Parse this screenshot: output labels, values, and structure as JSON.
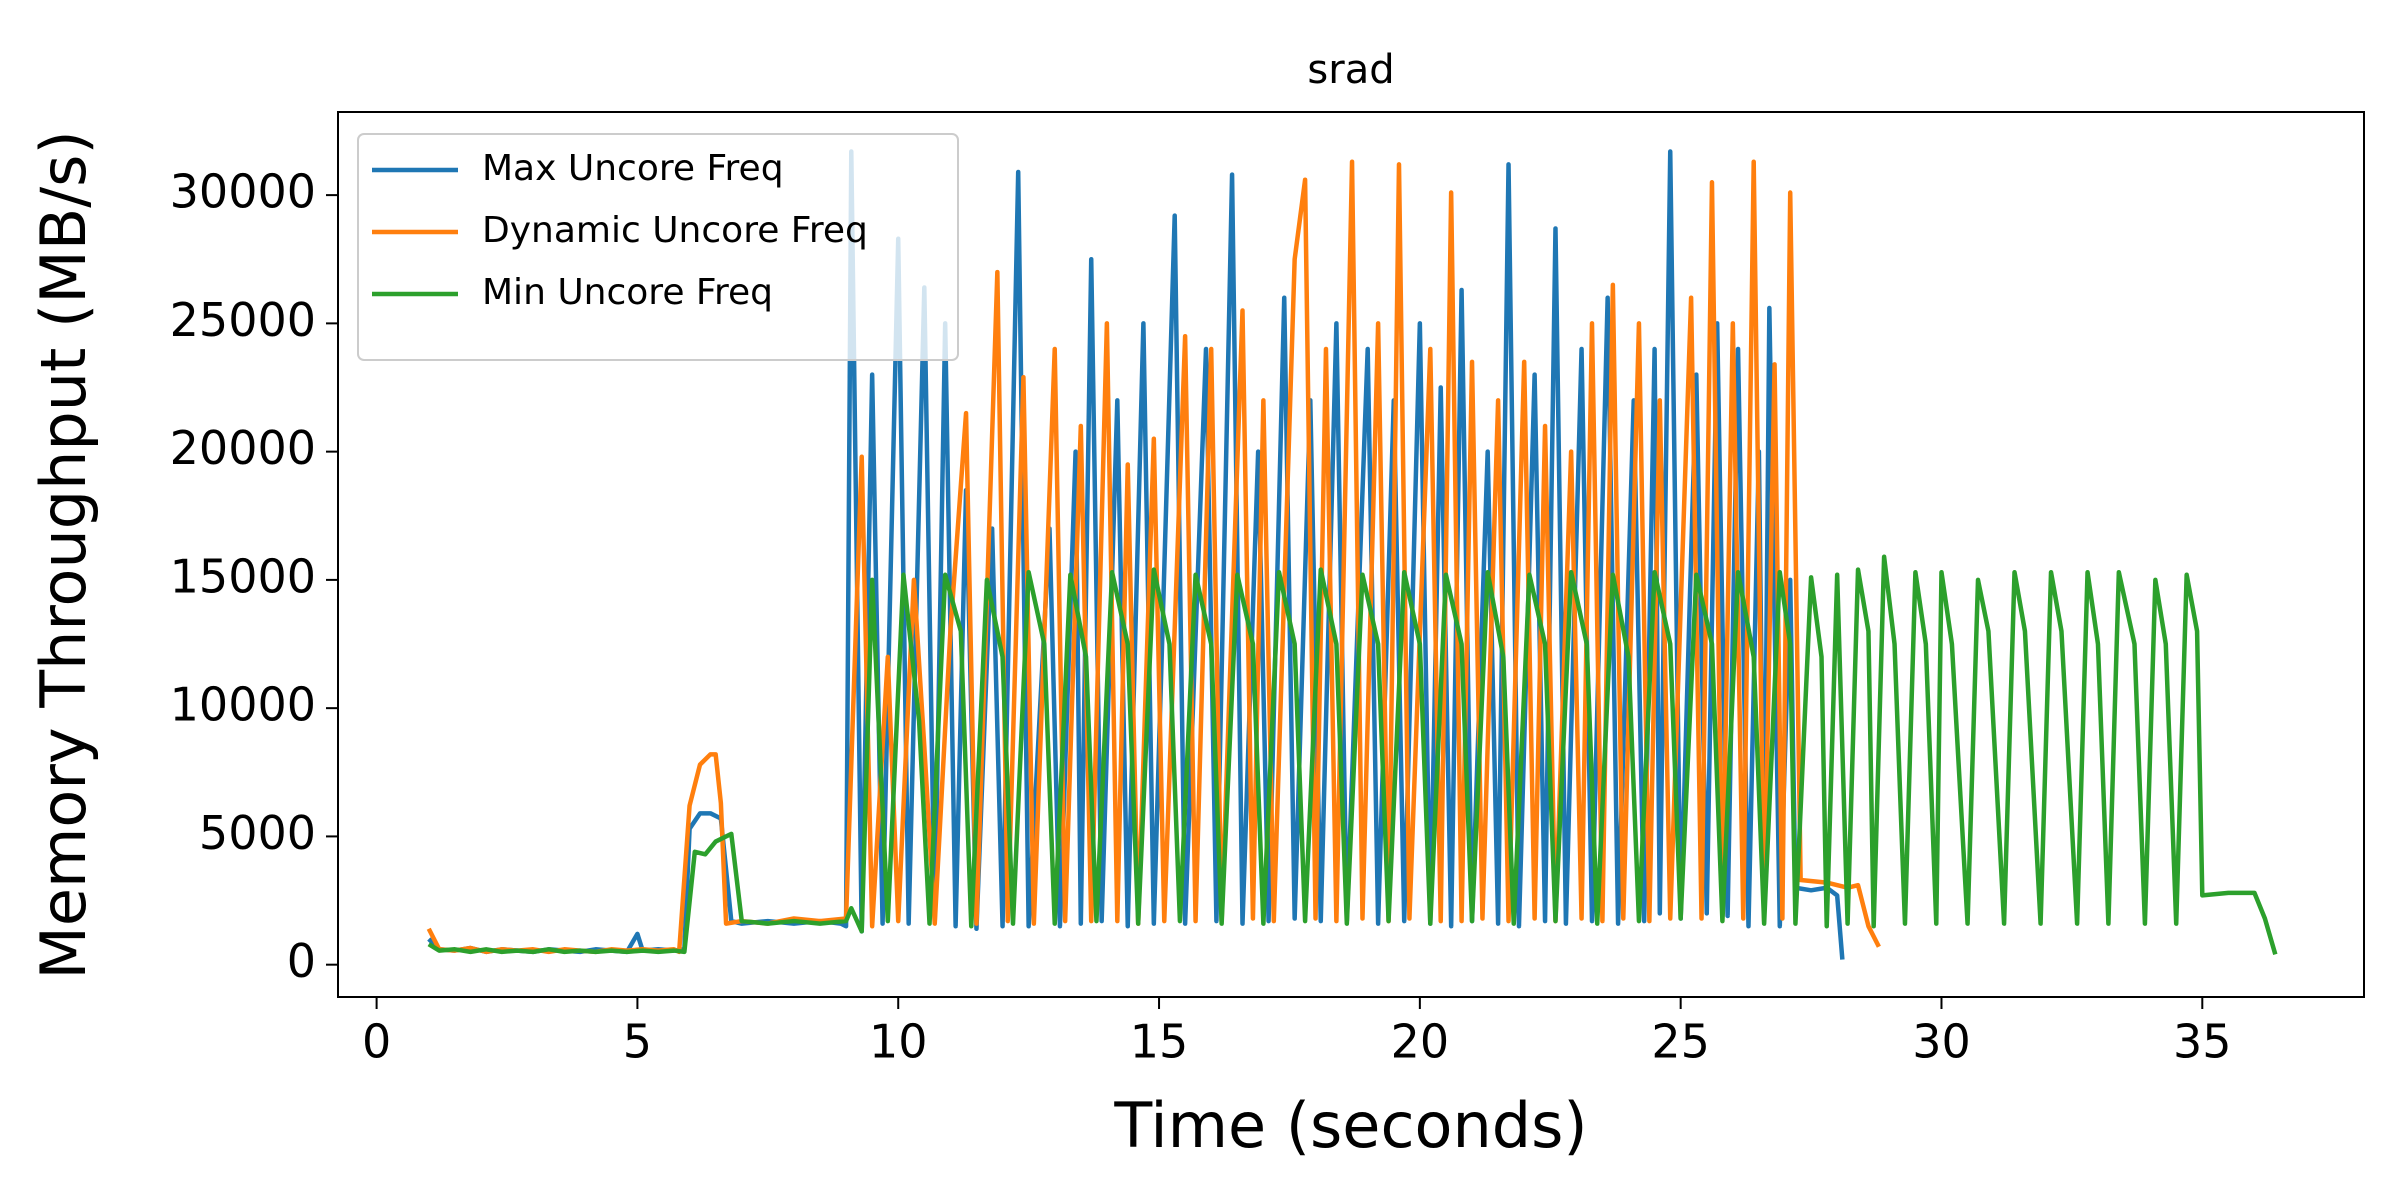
{
  "chart_data": {
    "type": "line",
    "title": "srad",
    "xlabel": "Time (seconds)",
    "ylabel": "Memory Throughput (MB/s)",
    "xlim": [
      -0.74,
      38.1
    ],
    "ylim": [
      -1260,
      33240
    ],
    "xticks": [
      0,
      5,
      10,
      15,
      20,
      25,
      30,
      35
    ],
    "yticks": [
      0,
      5000,
      10000,
      15000,
      20000,
      25000,
      30000
    ],
    "legend": "upper left",
    "series": [
      {
        "name": "Max Uncore Freq",
        "color": "#1f77b4",
        "x": [
          1.0,
          1.2,
          1.5,
          1.8,
          2.1,
          2.4,
          2.7,
          3.0,
          3.3,
          3.6,
          3.9,
          4.2,
          4.5,
          4.8,
          5.0,
          5.1,
          5.4,
          5.7,
          5.9,
          6.0,
          6.2,
          6.4,
          6.6,
          6.8,
          7.0,
          7.5,
          8.0,
          8.5,
          8.9,
          9.0,
          9.1,
          9.3,
          9.5,
          9.7,
          10.0,
          10.2,
          10.5,
          10.7,
          10.9,
          11.1,
          11.3,
          11.5,
          11.8,
          12.0,
          12.3,
          12.5,
          12.9,
          13.1,
          13.4,
          13.5,
          13.7,
          13.9,
          14.2,
          14.4,
          14.7,
          14.9,
          15.3,
          15.5,
          15.9,
          16.1,
          16.4,
          16.6,
          16.9,
          17.1,
          17.4,
          17.6,
          17.9,
          18.1,
          18.4,
          18.6,
          19.0,
          19.2,
          19.5,
          19.7,
          20.0,
          20.2,
          20.4,
          20.6,
          20.8,
          21.0,
          21.3,
          21.5,
          21.7,
          21.9,
          22.2,
          22.4,
          22.6,
          22.8,
          23.1,
          23.3,
          23.6,
          23.8,
          24.1,
          24.3,
          24.5,
          24.6,
          24.8,
          25.0,
          25.3,
          25.5,
          25.7,
          25.9,
          26.1,
          26.3,
          26.5,
          26.6,
          26.7,
          26.9,
          27.1,
          27.2,
          27.5,
          27.8,
          28.0,
          28.1
        ],
        "values": [
          1000,
          600,
          550,
          650,
          500,
          600,
          550,
          500,
          600,
          550,
          500,
          600,
          550,
          500,
          1200,
          550,
          600,
          550,
          600,
          5300,
          5900,
          5900,
          5700,
          1700,
          1600,
          1700,
          1600,
          1700,
          1600,
          1500,
          31700,
          1300,
          23000,
          1600,
          28300,
          1600,
          26400,
          1700,
          25000,
          1500,
          18500,
          1400,
          17000,
          1500,
          30900,
          1500,
          17000,
          1500,
          20000,
          1600,
          27500,
          1700,
          22000,
          1500,
          25000,
          1600,
          29200,
          1600,
          24000,
          1700,
          30800,
          1600,
          20000,
          1700,
          26000,
          1800,
          22000,
          1700,
          25000,
          1700,
          24000,
          1600,
          22000,
          1700,
          25000,
          1600,
          22500,
          1500,
          26300,
          1700,
          20000,
          1600,
          31200,
          1500,
          23000,
          1700,
          28700,
          1600,
          24000,
          1700,
          26000,
          1600,
          22000,
          1700,
          24000,
          2000,
          31700,
          1800,
          23000,
          2000,
          25000,
          1900,
          24000,
          1500,
          20000,
          2500,
          25600,
          1500,
          15000,
          3000,
          2900,
          3000,
          2700,
          200
        ]
      },
      {
        "name": "Dynamic Uncore Freq",
        "color": "#ff7f0e",
        "x": [
          1.0,
          1.2,
          1.5,
          1.8,
          2.1,
          2.4,
          2.7,
          3.0,
          3.3,
          3.6,
          3.9,
          4.2,
          4.5,
          4.8,
          5.1,
          5.4,
          5.7,
          5.8,
          6.0,
          6.2,
          6.4,
          6.5,
          6.6,
          6.7,
          7.0,
          7.5,
          8.0,
          8.5,
          9.0,
          9.3,
          9.5,
          9.8,
          10.0,
          10.3,
          10.5,
          10.7,
          11.0,
          11.3,
          11.5,
          11.9,
          12.1,
          12.4,
          12.6,
          13.0,
          13.2,
          13.5,
          13.7,
          14.0,
          14.2,
          14.4,
          14.6,
          14.9,
          15.1,
          15.5,
          15.7,
          16.0,
          16.2,
          16.6,
          16.8,
          17.0,
          17.2,
          17.6,
          17.8,
          18.0,
          18.2,
          18.4,
          18.7,
          18.9,
          19.2,
          19.4,
          19.6,
          19.8,
          20.2,
          20.4,
          20.6,
          20.8,
          21.0,
          21.2,
          21.5,
          21.7,
          22.0,
          22.2,
          22.4,
          22.6,
          22.9,
          23.1,
          23.3,
          23.5,
          23.7,
          23.9,
          24.2,
          24.4,
          24.6,
          24.8,
          25.2,
          25.4,
          25.6,
          25.8,
          26.0,
          26.2,
          26.4,
          26.6,
          26.8,
          26.95,
          27.1,
          27.3,
          27.8,
          28.2,
          28.4,
          28.6,
          28.8
        ],
        "values": [
          1400,
          600,
          550,
          650,
          500,
          600,
          550,
          600,
          500,
          600,
          550,
          500,
          600,
          550,
          600,
          550,
          600,
          500,
          6200,
          7800,
          8200,
          8200,
          6300,
          1600,
          1700,
          1600,
          1800,
          1700,
          1800,
          19800,
          1500,
          12000,
          1700,
          15000,
          8500,
          1600,
          13000,
          21500,
          1600,
          27000,
          1700,
          22900,
          1600,
          24000,
          1700,
          21000,
          1700,
          25000,
          1700,
          19500,
          1600,
          20500,
          1700,
          24500,
          1700,
          24000,
          1700,
          25500,
          1800,
          22000,
          1700,
          27500,
          30600,
          1800,
          24000,
          1700,
          31300,
          1800,
          25000,
          1700,
          31200,
          1800,
          24000,
          1700,
          30100,
          1700,
          23500,
          1800,
          22000,
          1700,
          23500,
          1800,
          21000,
          1700,
          20000,
          1800,
          25000,
          1700,
          26500,
          1800,
          25000,
          1700,
          22000,
          1800,
          26000,
          1800,
          30500,
          1900,
          25000,
          1800,
          31300,
          1700,
          23400,
          1800,
          30100,
          3300,
          3200,
          3000,
          3100,
          1500,
          700
        ]
      },
      {
        "name": "Min Uncore Freq",
        "color": "#2ca02c",
        "x": [
          1.0,
          1.2,
          1.5,
          1.8,
          2.1,
          2.4,
          2.7,
          3.0,
          3.3,
          3.6,
          3.9,
          4.2,
          4.5,
          4.8,
          5.1,
          5.4,
          5.7,
          5.9,
          6.1,
          6.3,
          6.5,
          6.8,
          7.0,
          7.5,
          8.0,
          8.5,
          9.0,
          9.1,
          9.3,
          9.5,
          9.8,
          10.1,
          10.4,
          10.6,
          10.9,
          11.2,
          11.4,
          11.7,
          12.0,
          12.2,
          12.5,
          12.8,
          13.0,
          13.3,
          13.6,
          13.8,
          14.1,
          14.4,
          14.6,
          14.9,
          15.2,
          15.4,
          15.7,
          16.0,
          16.2,
          16.5,
          16.8,
          17.0,
          17.3,
          17.6,
          17.8,
          18.1,
          18.4,
          18.6,
          18.9,
          19.2,
          19.4,
          19.7,
          20.0,
          20.2,
          20.5,
          20.8,
          21.0,
          21.3,
          21.6,
          21.8,
          22.1,
          22.4,
          22.6,
          22.9,
          23.2,
          23.4,
          23.7,
          24.0,
          24.2,
          24.5,
          24.8,
          25.0,
          25.3,
          25.6,
          25.8,
          26.1,
          26.4,
          26.6,
          26.9,
          27.1,
          27.2,
          27.5,
          27.7,
          27.8,
          28.0,
          28.2,
          28.4,
          28.6,
          28.7,
          28.9,
          29.1,
          29.3,
          29.5,
          29.7,
          29.9,
          30.0,
          30.2,
          30.5,
          30.7,
          30.9,
          31.2,
          31.4,
          31.6,
          31.9,
          32.1,
          32.3,
          32.6,
          32.8,
          33.0,
          33.2,
          33.4,
          33.7,
          33.9,
          34.1,
          34.3,
          34.5,
          34.7,
          34.9,
          35.0,
          35.5,
          36.0,
          36.2,
          36.4
        ],
        "values": [
          800,
          550,
          600,
          500,
          600,
          500,
          550,
          500,
          600,
          500,
          550,
          500,
          550,
          500,
          550,
          500,
          550,
          500,
          4400,
          4300,
          4800,
          5100,
          1700,
          1600,
          1700,
          1600,
          1700,
          2200,
          1300,
          15000,
          1700,
          15200,
          9500,
          1600,
          15200,
          13000,
          1500,
          15000,
          12000,
          1600,
          15300,
          12500,
          1600,
          15200,
          12000,
          1700,
          15300,
          12500,
          1600,
          15400,
          12500,
          1700,
          15200,
          12500,
          1600,
          15200,
          12500,
          1600,
          15300,
          12500,
          1700,
          15400,
          12500,
          1600,
          15200,
          12500,
          1700,
          15300,
          12500,
          1600,
          15200,
          12500,
          1700,
          15300,
          12000,
          1600,
          15200,
          12500,
          1700,
          15300,
          12500,
          1600,
          15200,
          12000,
          1700,
          15300,
          12500,
          1800,
          15200,
          12500,
          1700,
          15300,
          12000,
          1600,
          15300,
          12500,
          1600,
          15100,
          12000,
          1500,
          15200,
          1600,
          15400,
          13000,
          1500,
          15900,
          12500,
          1600,
          15300,
          12500,
          1600,
          15300,
          12500,
          1600,
          15000,
          13000,
          1600,
          15300,
          13000,
          1600,
          15300,
          13000,
          1600,
          15300,
          12500,
          1600,
          15300,
          12500,
          1600,
          15000,
          12500,
          1600,
          15200,
          13000,
          2700,
          2800,
          2800,
          1800,
          400
        ]
      }
    ]
  }
}
